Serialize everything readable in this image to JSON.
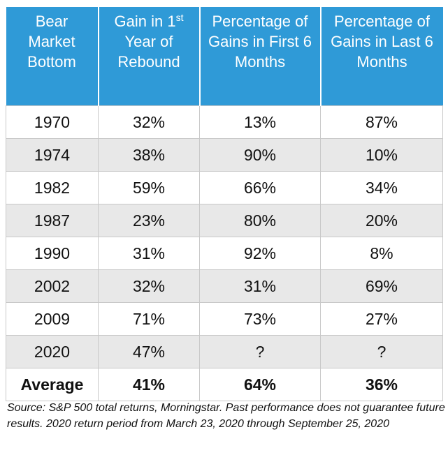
{
  "table": {
    "header": [
      "Bear Market Bottom",
      {
        "text": "Gain in 1",
        "sup": "st",
        "rest": "Year of Rebound"
      },
      "Percentage of Gains in First 6 Months",
      "Percentage of Gains in Last 6 Months"
    ],
    "rows": [
      [
        "1970",
        "32%",
        "13%",
        "87%"
      ],
      [
        "1974",
        "38%",
        "90%",
        "10%"
      ],
      [
        "1982",
        "59%",
        "66%",
        "34%"
      ],
      [
        "1987",
        "23%",
        "80%",
        "20%"
      ],
      [
        "1990",
        "31%",
        "92%",
        "8%"
      ],
      [
        "2002",
        "32%",
        "31%",
        "69%"
      ],
      [
        "2009",
        "71%",
        "73%",
        "27%"
      ],
      [
        "2020",
        "47%",
        "?",
        "?"
      ]
    ],
    "average": [
      "Average",
      "41%",
      "64%",
      "36%"
    ]
  },
  "footnote": "Source: S&P 500 total returns, Morningstar. Past performance does not guarantee future results. 2020 return period from March 23, 2020 through September 25, 2020"
}
